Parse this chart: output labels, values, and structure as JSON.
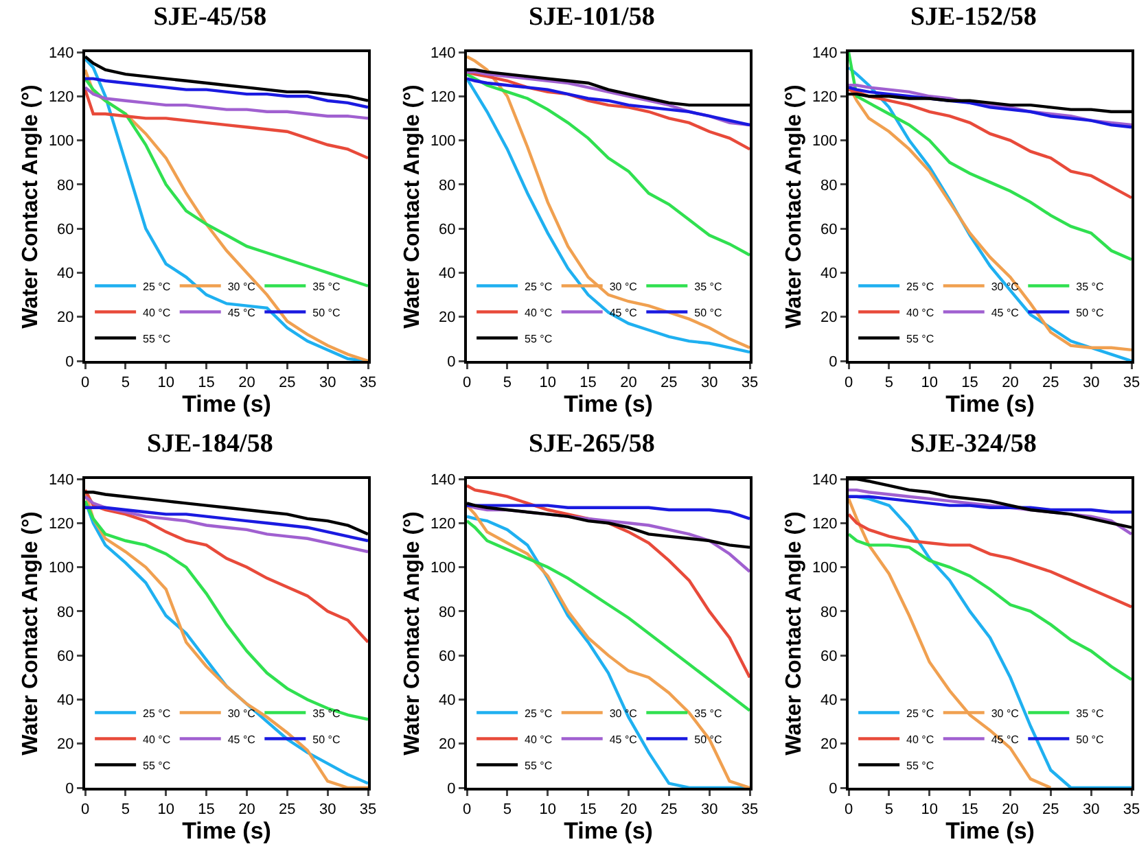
{
  "chart_data": [
    {
      "type": "line",
      "title": "SJE-45/58",
      "xlabel": "Time (s)",
      "ylabel": "Water Contact Angle (°)",
      "x": [
        0,
        1,
        2.5,
        5,
        7.5,
        10,
        12.5,
        15,
        17.5,
        20,
        22.5,
        25,
        27.5,
        30,
        32.5,
        35
      ],
      "xlim": [
        0,
        35
      ],
      "xticks": [
        0,
        5,
        10,
        15,
        20,
        25,
        30,
        35
      ],
      "ylim": [
        0,
        140
      ],
      "yticks": [
        0,
        20,
        40,
        60,
        80,
        100,
        120,
        140
      ],
      "grid": false,
      "legend": "bottom left",
      "series": [
        {
          "name": "25 °C",
          "color": "#1fb0f0",
          "values": [
            137,
            133,
            120,
            90,
            60,
            44,
            38,
            30,
            26,
            25,
            24,
            15,
            9,
            5,
            1,
            0
          ]
        },
        {
          "name": "30 °C",
          "color": "#f0a050",
          "values": [
            132,
            122,
            118,
            112,
            103,
            92,
            76,
            62,
            50,
            40,
            30,
            18,
            12,
            7,
            3,
            0
          ]
        },
        {
          "name": "35 °C",
          "color": "#30e050",
          "values": [
            128,
            123,
            118,
            112,
            98,
            80,
            68,
            62,
            57,
            52,
            49,
            46,
            43,
            40,
            37,
            34
          ]
        },
        {
          "name": "40 °C",
          "color": "#e84a3a",
          "values": [
            123,
            112,
            112,
            111,
            110,
            110,
            109,
            108,
            107,
            106,
            105,
            104,
            101,
            98,
            96,
            92
          ]
        },
        {
          "name": "45 °C",
          "color": "#a060d0",
          "values": [
            124,
            121,
            119,
            118,
            117,
            116,
            116,
            115,
            114,
            114,
            113,
            113,
            112,
            111,
            111,
            110
          ]
        },
        {
          "name": "50 °C",
          "color": "#1a1ae0",
          "values": [
            128,
            128,
            127,
            126,
            125,
            124,
            123,
            123,
            122,
            121,
            121,
            120,
            120,
            118,
            117,
            115
          ]
        },
        {
          "name": "55 °C",
          "color": "#000000",
          "values": [
            138,
            135,
            132,
            130,
            129,
            128,
            127,
            126,
            125,
            124,
            123,
            122,
            122,
            121,
            120,
            118
          ]
        }
      ]
    },
    {
      "type": "line",
      "title": "SJE-101/58",
      "xlabel": "Time (s)",
      "ylabel": "Water Contact Angle (°)",
      "x": [
        0,
        1,
        2.5,
        5,
        7.5,
        10,
        12.5,
        15,
        17.5,
        20,
        22.5,
        25,
        27.5,
        30,
        32.5,
        35
      ],
      "xlim": [
        0,
        35
      ],
      "xticks": [
        0,
        5,
        10,
        15,
        20,
        25,
        30,
        35
      ],
      "ylim": [
        0,
        140
      ],
      "yticks": [
        0,
        20,
        40,
        60,
        80,
        100,
        120,
        140
      ],
      "grid": false,
      "legend": "bottom left",
      "series": [
        {
          "name": "25 °C",
          "color": "#1fb0f0",
          "values": [
            128,
            122,
            113,
            96,
            76,
            58,
            42,
            30,
            22,
            17,
            14,
            11,
            9,
            8,
            6,
            4
          ]
        },
        {
          "name": "30 °C",
          "color": "#f0a050",
          "values": [
            138,
            136,
            132,
            120,
            97,
            72,
            52,
            38,
            30,
            27,
            25,
            22,
            19,
            15,
            10,
            6
          ]
        },
        {
          "name": "35 °C",
          "color": "#30e050",
          "values": [
            130,
            128,
            125,
            122,
            119,
            114,
            108,
            101,
            92,
            86,
            76,
            71,
            64,
            57,
            53,
            48
          ]
        },
        {
          "name": "40 °C",
          "color": "#e84a3a",
          "values": [
            131,
            130,
            129,
            127,
            124,
            122,
            121,
            118,
            116,
            115,
            113,
            110,
            108,
            104,
            101,
            96
          ]
        },
        {
          "name": "45 °C",
          "color": "#a060d0",
          "values": [
            131,
            131,
            130,
            129,
            128,
            127,
            126,
            124,
            122,
            120,
            118,
            116,
            113,
            111,
            108,
            107
          ]
        },
        {
          "name": "50 °C",
          "color": "#1a1ae0",
          "values": [
            128,
            127,
            126,
            125,
            124,
            123,
            121,
            119,
            118,
            116,
            115,
            114,
            113,
            111,
            109,
            107
          ]
        },
        {
          "name": "55 °C",
          "color": "#000000",
          "values": [
            132,
            132,
            131,
            130,
            129,
            128,
            127,
            126,
            123,
            121,
            119,
            117,
            116,
            116,
            116,
            116
          ]
        }
      ]
    },
    {
      "type": "line",
      "title": "SJE-152/58",
      "xlabel": "Time (s)",
      "ylabel": "Water Contact Angle (°)",
      "x": [
        0,
        1,
        2.5,
        5,
        7.5,
        10,
        12.5,
        15,
        17.5,
        20,
        22.5,
        25,
        27.5,
        30,
        32.5,
        35
      ],
      "xlim": [
        0,
        35
      ],
      "xticks": [
        0,
        5,
        10,
        15,
        20,
        25,
        30,
        35
      ],
      "ylim": [
        0,
        140
      ],
      "yticks": [
        0,
        20,
        40,
        60,
        80,
        100,
        120,
        140
      ],
      "grid": false,
      "legend": "bottom left",
      "series": [
        {
          "name": "25 °C",
          "color": "#1fb0f0",
          "values": [
            133,
            130,
            125,
            115,
            100,
            88,
            73,
            57,
            43,
            32,
            21,
            15,
            9,
            6,
            3,
            0
          ]
        },
        {
          "name": "30 °C",
          "color": "#f0a050",
          "values": [
            125,
            118,
            110,
            104,
            96,
            86,
            72,
            58,
            47,
            38,
            26,
            13,
            7,
            6,
            6,
            5
          ]
        },
        {
          "name": "35 °C",
          "color": "#30e050",
          "values": [
            140,
            120,
            117,
            112,
            107,
            100,
            90,
            85,
            81,
            77,
            72,
            66,
            61,
            58,
            50,
            46
          ]
        },
        {
          "name": "40 °C",
          "color": "#e84a3a",
          "values": [
            123,
            122,
            120,
            118,
            116,
            113,
            111,
            108,
            103,
            100,
            95,
            92,
            86,
            84,
            79,
            74
          ]
        },
        {
          "name": "45 °C",
          "color": "#a060d0",
          "values": [
            125,
            125,
            124,
            123,
            122,
            120,
            119,
            117,
            116,
            115,
            113,
            112,
            111,
            109,
            108,
            107
          ]
        },
        {
          "name": "50 °C",
          "color": "#1a1ae0",
          "values": [
            124,
            123,
            122,
            121,
            120,
            119,
            118,
            117,
            115,
            114,
            113,
            111,
            110,
            109,
            107,
            106
          ]
        },
        {
          "name": "55 °C",
          "color": "#000000",
          "values": [
            121,
            121,
            120,
            120,
            119,
            119,
            118,
            118,
            117,
            116,
            116,
            115,
            114,
            114,
            113,
            113
          ]
        }
      ]
    },
    {
      "type": "line",
      "title": "SJE-184/58",
      "xlabel": "Time (s)",
      "ylabel": "Water Contact Angle (°)",
      "x": [
        0,
        1,
        2.5,
        5,
        7.5,
        10,
        12.5,
        15,
        17.5,
        20,
        22.5,
        25,
        27.5,
        30,
        32.5,
        35
      ],
      "xlim": [
        0,
        35
      ],
      "xticks": [
        0,
        5,
        10,
        15,
        20,
        25,
        30,
        35
      ],
      "ylim": [
        0,
        140
      ],
      "yticks": [
        0,
        20,
        40,
        60,
        80,
        100,
        120,
        140
      ],
      "grid": false,
      "legend": "bottom left",
      "series": [
        {
          "name": "25 °C",
          "color": "#1fb0f0",
          "values": [
            130,
            120,
            110,
            102,
            93,
            78,
            70,
            58,
            46,
            38,
            30,
            22,
            16,
            11,
            6,
            2
          ]
        },
        {
          "name": "30 °C",
          "color": "#f0a050",
          "values": [
            134,
            122,
            113,
            107,
            100,
            90,
            66,
            55,
            46,
            38,
            32,
            25,
            17,
            3,
            0,
            0
          ]
        },
        {
          "name": "35 °C",
          "color": "#30e050",
          "values": [
            130,
            122,
            115,
            112,
            110,
            106,
            100,
            88,
            74,
            62,
            52,
            45,
            40,
            36,
            33,
            31
          ]
        },
        {
          "name": "40 °C",
          "color": "#e84a3a",
          "values": [
            135,
            128,
            126,
            124,
            121,
            116,
            112,
            110,
            104,
            100,
            95,
            91,
            87,
            80,
            76,
            66
          ]
        },
        {
          "name": "45 °C",
          "color": "#a060d0",
          "values": [
            132,
            129,
            127,
            125,
            123,
            122,
            121,
            119,
            118,
            117,
            115,
            114,
            113,
            111,
            109,
            107
          ]
        },
        {
          "name": "50 °C",
          "color": "#1a1ae0",
          "values": [
            127,
            127,
            127,
            126,
            125,
            124,
            124,
            123,
            122,
            121,
            120,
            119,
            118,
            116,
            114,
            112
          ]
        },
        {
          "name": "55 °C",
          "color": "#000000",
          "values": [
            134,
            134,
            133,
            132,
            131,
            130,
            129,
            128,
            127,
            126,
            125,
            124,
            122,
            121,
            119,
            115
          ]
        }
      ]
    },
    {
      "type": "line",
      "title": "SJE-265/58",
      "xlabel": "Time (s)",
      "ylabel": "Water Contact Angle (°)",
      "x": [
        0,
        1,
        2.5,
        5,
        7.5,
        10,
        12.5,
        15,
        17.5,
        20,
        22.5,
        25,
        27.5,
        30,
        32.5,
        35
      ],
      "xlim": [
        0,
        35
      ],
      "xticks": [
        0,
        5,
        10,
        15,
        20,
        25,
        30,
        35
      ],
      "ylim": [
        0,
        140
      ],
      "yticks": [
        0,
        20,
        40,
        60,
        80,
        100,
        120,
        140
      ],
      "grid": false,
      "legend": "bottom left",
      "series": [
        {
          "name": "25 °C",
          "color": "#1fb0f0",
          "values": [
            123,
            122,
            121,
            117,
            110,
            95,
            78,
            66,
            52,
            32,
            16,
            2,
            0,
            0,
            0,
            0
          ]
        },
        {
          "name": "30 °C",
          "color": "#f0a050",
          "values": [
            128,
            124,
            116,
            111,
            106,
            96,
            80,
            68,
            60,
            53,
            50,
            43,
            34,
            22,
            3,
            0
          ]
        },
        {
          "name": "35 °C",
          "color": "#30e050",
          "values": [
            121,
            118,
            112,
            108,
            104,
            100,
            95,
            89,
            83,
            77,
            70,
            63,
            56,
            49,
            42,
            35
          ]
        },
        {
          "name": "40 °C",
          "color": "#e84a3a",
          "values": [
            137,
            135,
            134,
            132,
            129,
            126,
            124,
            122,
            120,
            116,
            111,
            103,
            94,
            80,
            68,
            50
          ]
        },
        {
          "name": "45 °C",
          "color": "#a060d0",
          "values": [
            128,
            127,
            126,
            126,
            125,
            124,
            123,
            122,
            121,
            120,
            119,
            117,
            115,
            112,
            106,
            98
          ]
        },
        {
          "name": "50 °C",
          "color": "#1a1ae0",
          "values": [
            128,
            128,
            128,
            128,
            128,
            128,
            127,
            127,
            127,
            127,
            127,
            126,
            126,
            126,
            125,
            122
          ]
        },
        {
          "name": "55 °C",
          "color": "#000000",
          "values": [
            129,
            128,
            127,
            126,
            125,
            124,
            123,
            121,
            120,
            118,
            115,
            114,
            113,
            112,
            110,
            109
          ]
        }
      ]
    },
    {
      "type": "line",
      "title": "SJE-324/58",
      "xlabel": "Time (s)",
      "ylabel": "Water Contact Angle (°)",
      "x": [
        0,
        1,
        2.5,
        5,
        7.5,
        10,
        12.5,
        15,
        17.5,
        20,
        22.5,
        25,
        27.5,
        30,
        32.5,
        35
      ],
      "xlim": [
        0,
        35
      ],
      "xticks": [
        0,
        5,
        10,
        15,
        20,
        25,
        30,
        35
      ],
      "ylim": [
        0,
        140
      ],
      "yticks": [
        0,
        20,
        40,
        60,
        80,
        100,
        120,
        140
      ],
      "grid": false,
      "legend": "bottom left",
      "series": [
        {
          "name": "25 °C",
          "color": "#1fb0f0",
          "values": [
            132,
            132,
            131,
            128,
            118,
            104,
            94,
            80,
            68,
            50,
            28,
            8,
            0,
            0,
            0,
            0
          ]
        },
        {
          "name": "30 °C",
          "color": "#f0a050",
          "values": [
            131,
            122,
            110,
            97,
            78,
            57,
            44,
            33,
            26,
            18,
            4,
            0,
            null,
            null,
            null,
            null
          ]
        },
        {
          "name": "35 °C",
          "color": "#30e050",
          "values": [
            115,
            112,
            110,
            110,
            109,
            103,
            100,
            96,
            90,
            83,
            80,
            74,
            67,
            62,
            55,
            49
          ]
        },
        {
          "name": "40 °C",
          "color": "#e84a3a",
          "values": [
            124,
            120,
            117,
            114,
            112,
            111,
            110,
            110,
            106,
            104,
            101,
            98,
            94,
            90,
            86,
            82
          ]
        },
        {
          "name": "45 °C",
          "color": "#a060d0",
          "values": [
            135,
            135,
            134,
            133,
            132,
            131,
            130,
            129,
            128,
            127,
            126,
            125,
            124,
            123,
            121,
            115
          ]
        },
        {
          "name": "50 °C",
          "color": "#1a1ae0",
          "values": [
            132,
            132,
            132,
            131,
            130,
            129,
            128,
            128,
            127,
            127,
            127,
            126,
            126,
            126,
            125,
            125
          ]
        },
        {
          "name": "55 °C",
          "color": "#000000",
          "values": [
            140,
            140,
            139,
            137,
            135,
            134,
            132,
            131,
            130,
            128,
            126,
            125,
            124,
            122,
            120,
            118
          ]
        }
      ]
    }
  ]
}
